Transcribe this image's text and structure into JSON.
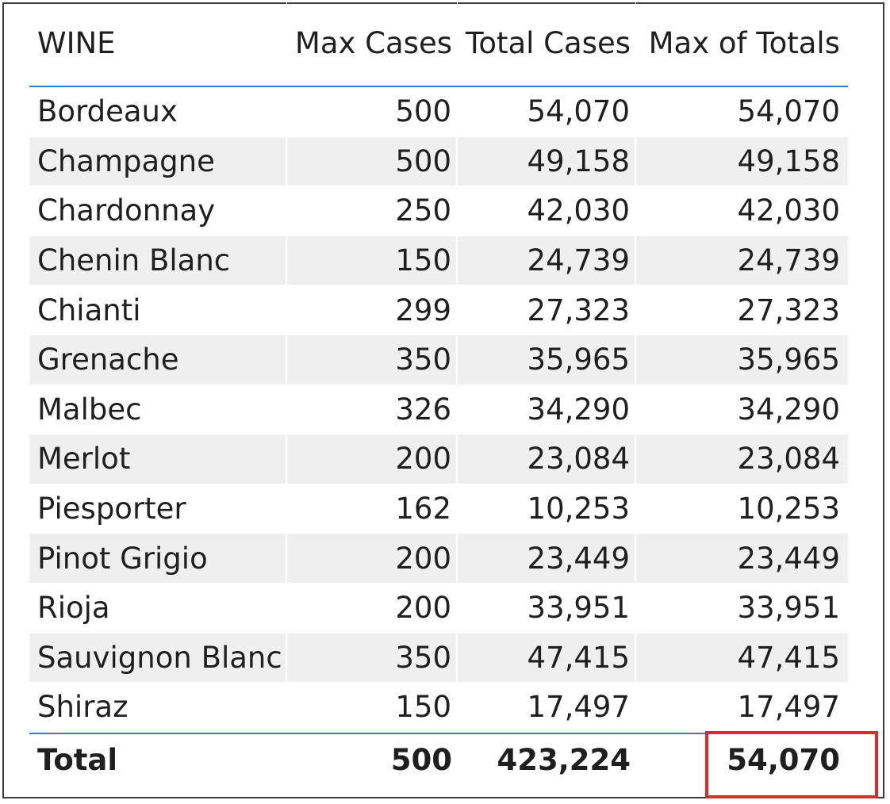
{
  "table": {
    "headers": {
      "wine": "WINE",
      "max_cases": "Max Cases",
      "total_cases": "Total Cases",
      "max_of_totals": "Max of Totals"
    },
    "rows": [
      {
        "wine": "Bordeaux",
        "max_cases": "500",
        "total_cases": "54,070",
        "max_of_totals": "54,070"
      },
      {
        "wine": "Champagne",
        "max_cases": "500",
        "total_cases": "49,158",
        "max_of_totals": "49,158"
      },
      {
        "wine": "Chardonnay",
        "max_cases": "250",
        "total_cases": "42,030",
        "max_of_totals": "42,030"
      },
      {
        "wine": "Chenin Blanc",
        "max_cases": "150",
        "total_cases": "24,739",
        "max_of_totals": "24,739"
      },
      {
        "wine": "Chianti",
        "max_cases": "299",
        "total_cases": "27,323",
        "max_of_totals": "27,323"
      },
      {
        "wine": "Grenache",
        "max_cases": "350",
        "total_cases": "35,965",
        "max_of_totals": "35,965"
      },
      {
        "wine": "Malbec",
        "max_cases": "326",
        "total_cases": "34,290",
        "max_of_totals": "34,290"
      },
      {
        "wine": "Merlot",
        "max_cases": "200",
        "total_cases": "23,084",
        "max_of_totals": "23,084"
      },
      {
        "wine": "Piesporter",
        "max_cases": "162",
        "total_cases": "10,253",
        "max_of_totals": "10,253"
      },
      {
        "wine": "Pinot Grigio",
        "max_cases": "200",
        "total_cases": "23,449",
        "max_of_totals": "23,449"
      },
      {
        "wine": "Rioja",
        "max_cases": "200",
        "total_cases": "33,951",
        "max_of_totals": "33,951"
      },
      {
        "wine": "Sauvignon Blanc",
        "max_cases": "350",
        "total_cases": "47,415",
        "max_of_totals": "47,415"
      },
      {
        "wine": "Shiraz",
        "max_cases": "150",
        "total_cases": "17,497",
        "max_of_totals": "17,497"
      }
    ],
    "total": {
      "wine": "Total",
      "max_cases": "500",
      "total_cases": "423,224",
      "max_of_totals": "54,070"
    }
  },
  "colors": {
    "accent_line": "#3b78c6",
    "stripe": "#efefef",
    "highlight": "#d72c2c"
  }
}
